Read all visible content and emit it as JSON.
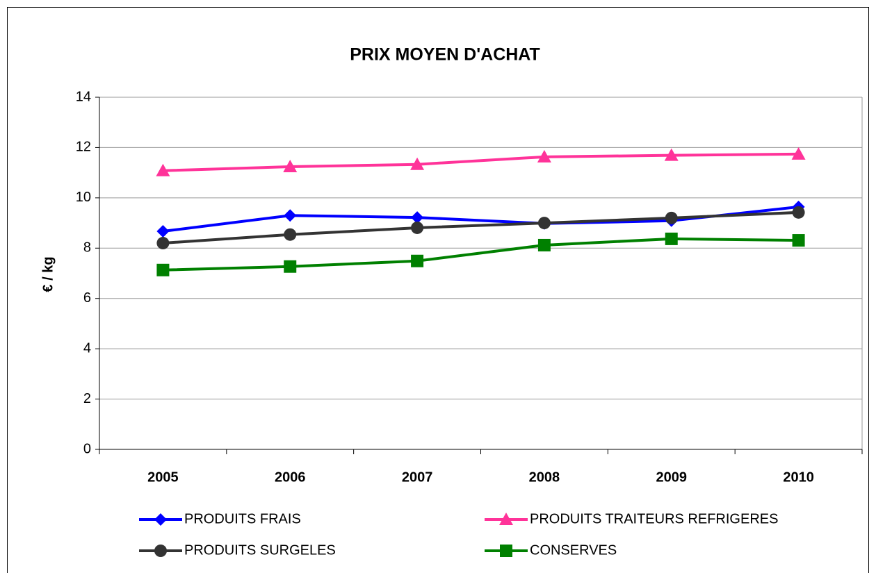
{
  "chart_data": {
    "type": "line",
    "title": "PRIX MOYEN D'ACHAT",
    "y_label": "€ / kg",
    "categories": [
      "2005",
      "2006",
      "2007",
      "2008",
      "2009",
      "2010"
    ],
    "series": [
      {
        "name": "PRODUITS FRAIS",
        "color": "#0000ff",
        "marker": "diamond",
        "values": [
          8.67,
          9.3,
          9.22,
          8.98,
          9.09,
          9.64
        ]
      },
      {
        "name": "PRODUITS TRAITEURS REFRIGERES",
        "color": "#ff3399",
        "marker": "triangle",
        "values": [
          11.08,
          11.24,
          11.33,
          11.63,
          11.69,
          11.74
        ]
      },
      {
        "name": "PRODUITS SURGELES",
        "color": "#333333",
        "marker": "circle",
        "values": [
          8.2,
          8.54,
          8.81,
          9.0,
          9.2,
          9.42
        ]
      },
      {
        "name": "CONSERVES",
        "color": "#008000",
        "marker": "square",
        "values": [
          7.13,
          7.27,
          7.49,
          8.12,
          8.37,
          8.31
        ]
      }
    ],
    "ylim": [
      0,
      14
    ],
    "yticks": [
      0,
      2,
      4,
      6,
      8,
      10,
      12,
      14
    ],
    "grid": true,
    "legend": "bottom"
  }
}
